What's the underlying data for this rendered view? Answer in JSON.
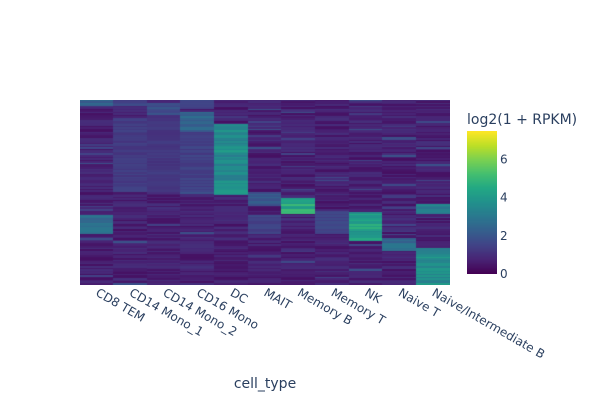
{
  "chart_data": {
    "type": "heatmap",
    "title": "",
    "xlabel": "cell_type",
    "ylabel": "",
    "categories": [
      "CD8 TEM",
      "CD14 Mono_1",
      "CD14 Mono_2",
      "CD16 Mono",
      "DC",
      "MAIT",
      "Memory B",
      "Memory T",
      "NK",
      "Naive T",
      "Naive/Intermediate B"
    ],
    "colorbar": {
      "title": "log2(1 + RPKM)",
      "range": [
        0,
        7.5
      ],
      "ticks": [
        0,
        2,
        4,
        6
      ],
      "colorscale": "Viridis"
    },
    "num_genes": 120,
    "blocks": [
      {
        "category": "CD8 TEM",
        "row_start": 0.0,
        "row_end": 0.03,
        "value": 2.4
      },
      {
        "category": "CD8 TEM",
        "row_start": 0.63,
        "row_end": 0.72,
        "value": 2.6
      },
      {
        "category": "CD14 Mono_1",
        "row_start": 0.0,
        "row_end": 0.03,
        "value": 1.6
      },
      {
        "category": "CD14 Mono_1",
        "row_start": 0.1,
        "row_end": 0.5,
        "value": 1.3
      },
      {
        "category": "CD14 Mono_2",
        "row_start": 0.03,
        "row_end": 0.08,
        "value": 1.8
      },
      {
        "category": "CD14 Mono_2",
        "row_start": 0.1,
        "row_end": 0.5,
        "value": 1.2
      },
      {
        "category": "CD16 Mono",
        "row_start": 0.0,
        "row_end": 0.05,
        "value": 1.5
      },
      {
        "category": "CD16 Mono",
        "row_start": 0.07,
        "row_end": 0.18,
        "value": 2.4
      },
      {
        "category": "CD16 Mono",
        "row_start": 0.18,
        "row_end": 0.5,
        "value": 1.4
      },
      {
        "category": "DC",
        "row_start": 0.14,
        "row_end": 0.51,
        "value": 3.6
      },
      {
        "category": "MAIT",
        "row_start": 0.51,
        "row_end": 0.57,
        "value": 2.1
      },
      {
        "category": "MAIT",
        "row_start": 0.63,
        "row_end": 0.72,
        "value": 1.5
      },
      {
        "category": "Memory B",
        "row_start": 0.54,
        "row_end": 0.61,
        "value": 4.6
      },
      {
        "category": "Memory T",
        "row_start": 0.6,
        "row_end": 0.72,
        "value": 1.5
      },
      {
        "category": "NK",
        "row_start": 0.61,
        "row_end": 0.76,
        "value": 4.2
      },
      {
        "category": "Naive T",
        "row_start": 0.75,
        "row_end": 0.81,
        "value": 2.6
      },
      {
        "category": "Naive/Intermediate B",
        "row_start": 0.57,
        "row_end": 0.61,
        "value": 3.3
      },
      {
        "category": "Naive/Intermediate B",
        "row_start": 0.8,
        "row_end": 1.0,
        "value": 3.7
      }
    ],
    "background_value": 0.8,
    "grid": false
  }
}
